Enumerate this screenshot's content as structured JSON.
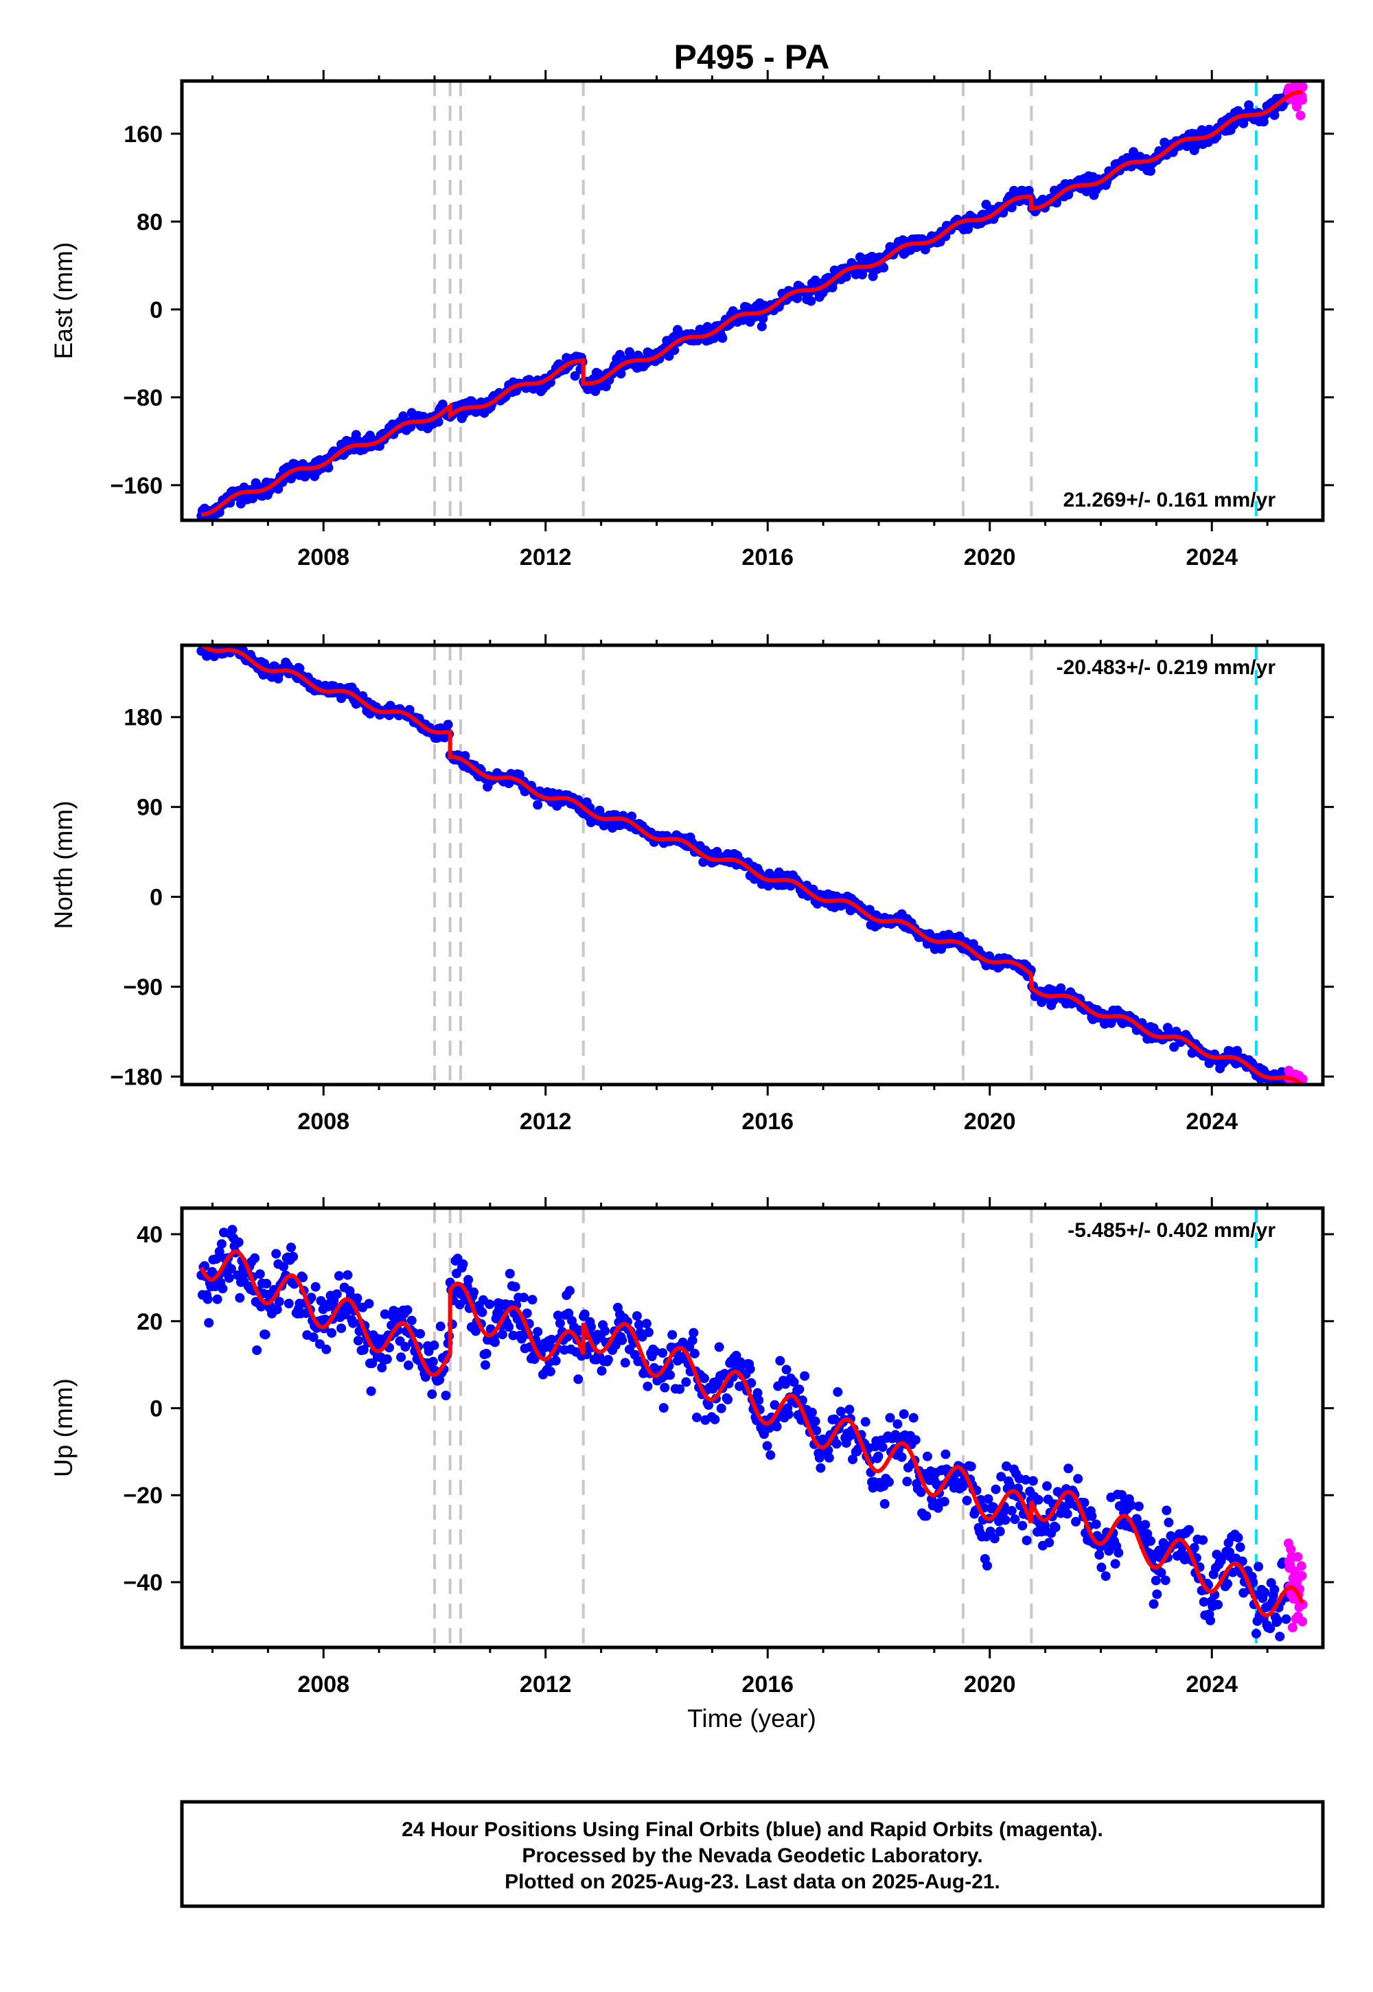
{
  "title": "P495 - PA",
  "colors": {
    "final_points": "#0000ff",
    "rapid_points": "#ff00ff",
    "model_line": "#ff0000",
    "event_lines": "#c8c8c8",
    "equipment_line": "#00e0ff",
    "frame": "#000000"
  },
  "x_axis": {
    "label": "Time (year)",
    "ticks": [
      2008,
      2012,
      2016,
      2020,
      2024
    ],
    "range": [
      2005.45,
      2026.0
    ]
  },
  "footer": {
    "line1": "24 Hour Positions Using Final Orbits (blue) and Rapid Orbits (magenta).",
    "line2": "Processed by the Nevada Geodetic Laboratory.",
    "line3": "Plotted on 2025-Aug-23. Last data on 2025-Aug-21."
  },
  "chart_data": [
    {
      "type": "scatter",
      "component": "east",
      "ylabel": "East (mm)",
      "ylim": [
        -192,
        208
      ],
      "yticks": [
        -160,
        -80,
        0,
        80,
        160
      ],
      "rate_label": "21.269+/- 0.161 mm/yr",
      "rate_position": "bottom-right",
      "event_lines": [
        2010.0,
        2010.28,
        2010.47,
        2012.68,
        2019.52,
        2020.75
      ],
      "equipment_line": 2024.8,
      "last_final": 2025.38,
      "last_date": 2025.64,
      "model": {
        "segments": [
          {
            "start": 2005.8,
            "intercept": -185,
            "rate": 21.269
          },
          {
            "start": 2010.28,
            "intercept": -98,
            "rate": 21.269
          },
          {
            "start": 2012.68,
            "intercept": -68,
            "rate": 21.269
          },
          {
            "start": 2020.75,
            "intercept": 93,
            "rate": 21.269
          }
        ],
        "seasonal_amp": 3.2,
        "noise": 3.8
      }
    },
    {
      "type": "scatter",
      "component": "north",
      "ylabel": "North (mm)",
      "ylim": [
        -188,
        252
      ],
      "yticks": [
        -180,
        -90,
        0,
        90,
        180
      ],
      "rate_label": "-20.483+/- 0.219 mm/yr",
      "rate_position": "top-right",
      "event_lines": [
        2010.0,
        2010.28,
        2010.47,
        2012.68,
        2019.52,
        2020.75
      ],
      "equipment_line": 2024.8,
      "last_final": 2025.38,
      "last_date": 2025.64,
      "model": {
        "segments": [
          {
            "start": 2005.8,
            "intercept": 255,
            "rate": -20.483
          },
          {
            "start": 2010.28,
            "intercept": 138,
            "rate": -20.483
          },
          {
            "start": 2020.75,
            "intercept": -90,
            "rate": -20.483
          }
        ],
        "seasonal_amp": 4.0,
        "noise": 3.5
      }
    },
    {
      "type": "scatter",
      "component": "up",
      "ylabel": "Up (mm)",
      "ylim": [
        -55,
        46
      ],
      "yticks": [
        -40,
        -20,
        0,
        20,
        40
      ],
      "rate_label": "-5.485+/- 0.402 mm/yr",
      "rate_position": "top-right",
      "event_lines": [
        2010.0,
        2010.28,
        2010.47,
        2012.68,
        2019.52,
        2020.75
      ],
      "equipment_line": 2024.8,
      "last_final": 2025.38,
      "last_date": 2025.64,
      "model": {
        "segments": [
          {
            "start": 2005.8,
            "intercept": 35,
            "rate": -5.485
          },
          {
            "start": 2010.28,
            "intercept": 25,
            "rate": -5.485
          },
          {
            "start": 2012.68,
            "intercept": 19,
            "rate": -5.485
          },
          {
            "start": 2020.75,
            "intercept": -20,
            "rate": -5.485
          }
        ],
        "seasonal_amp": 4.5,
        "noise": 3.6
      }
    }
  ]
}
